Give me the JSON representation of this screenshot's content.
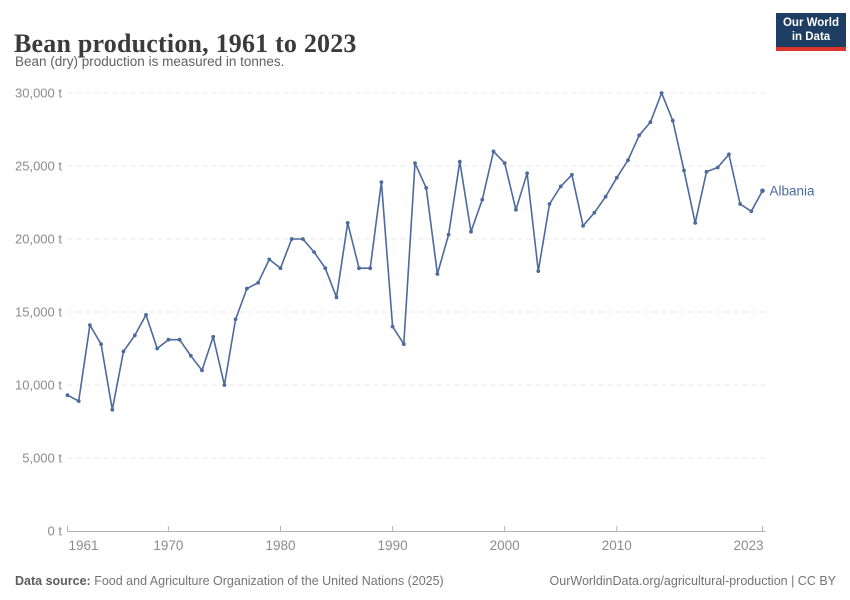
{
  "header": {
    "title": "Bean production, 1961 to 2023",
    "subtitle": "Bean (dry) production is measured in tonnes.",
    "logo": {
      "line1": "Our World",
      "line2": "in Data"
    }
  },
  "chart_data": {
    "type": "line",
    "title": "Bean production, 1961 to 2023",
    "subtitle": "Bean (dry) production is measured in tonnes.",
    "unit": "t",
    "xlabel": "",
    "ylabel": "",
    "xlim": [
      1961,
      2023
    ],
    "ylim": [
      0,
      30000
    ],
    "grid": "horizontal-dashed",
    "legend_position": "end-of-line-label",
    "end_label": "Albania",
    "series": [
      {
        "name": "Albania",
        "color": "#4c6a9c",
        "x": [
          1961,
          1962,
          1963,
          1964,
          1965,
          1966,
          1967,
          1968,
          1969,
          1970,
          1971,
          1972,
          1973,
          1974,
          1975,
          1976,
          1977,
          1978,
          1979,
          1980,
          1981,
          1982,
          1983,
          1984,
          1985,
          1986,
          1987,
          1988,
          1989,
          1990,
          1991,
          1992,
          1993,
          1994,
          1995,
          1996,
          1997,
          1998,
          1999,
          2000,
          2001,
          2002,
          2003,
          2004,
          2005,
          2006,
          2007,
          2008,
          2009,
          2010,
          2011,
          2012,
          2013,
          2014,
          2015,
          2016,
          2017,
          2018,
          2019,
          2020,
          2021,
          2022,
          2023
        ],
        "values": [
          9300,
          8900,
          14100,
          12800,
          8300,
          12300,
          13400,
          14800,
          12500,
          13100,
          13100,
          12000,
          11000,
          13300,
          10000,
          14500,
          16600,
          17000,
          18600,
          18000,
          20000,
          20000,
          19100,
          18000,
          16000,
          21100,
          18000,
          18000,
          23900,
          14000,
          12800,
          25200,
          23500,
          17600,
          20300,
          25300,
          20500,
          22700,
          26000,
          25200,
          22000,
          24500,
          17800,
          22400,
          23600,
          24400,
          20900,
          21800,
          22900,
          24200,
          25400,
          27100,
          28000,
          30000,
          28100,
          24700,
          21100,
          24600,
          24900,
          25800,
          22400,
          21900,
          23300
        ]
      }
    ],
    "y_ticks": [
      {
        "value": 0,
        "label": "0 t"
      },
      {
        "value": 5000,
        "label": "5,000 t"
      },
      {
        "value": 10000,
        "label": "10,000 t"
      },
      {
        "value": 15000,
        "label": "15,000 t"
      },
      {
        "value": 20000,
        "label": "20,000 t"
      },
      {
        "value": 25000,
        "label": "25,000 t"
      },
      {
        "value": 30000,
        "label": "30,000 t"
      }
    ],
    "x_ticks": [
      {
        "value": 1961,
        "label": "1961"
      },
      {
        "value": 1970,
        "label": "1970"
      },
      {
        "value": 1980,
        "label": "1980"
      },
      {
        "value": 1990,
        "label": "1990"
      },
      {
        "value": 2000,
        "label": "2000"
      },
      {
        "value": 2010,
        "label": "2010"
      },
      {
        "value": 2023,
        "label": "2023"
      }
    ]
  },
  "footer": {
    "source_label": "Data source:",
    "source_text": " Food and Agriculture Organization of the United Nations (2025)",
    "credit": "OurWorldinData.org/agricultural-production | CC BY"
  },
  "colors": {
    "line": "#4c6a9c",
    "title": "#3b3b3b",
    "subtitle": "#616161",
    "axis_text": "#8c8c8c",
    "gridline": "#e8e8e8",
    "axis_line": "#b3b3b3",
    "logo_bg": "#1d3d63",
    "logo_accent": "#dc352c"
  }
}
